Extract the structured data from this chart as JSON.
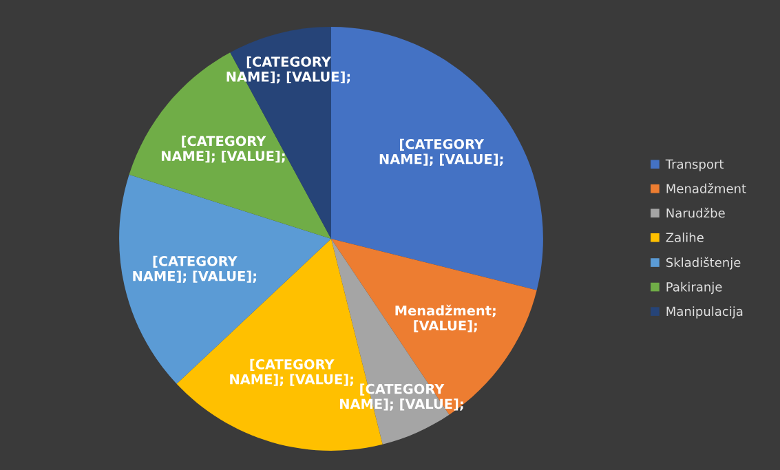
{
  "chart_data": {
    "type": "pie",
    "categories": [
      "Transport",
      "Menadžment",
      "Narudžbe",
      "Zalihe",
      "Skladištenje",
      "Pakiranje",
      "Manipulacija"
    ],
    "values": [
      28.9,
      11.7,
      5.5,
      16.9,
      16.9,
      12.2,
      7.9
    ],
    "colors": [
      "#4472c4",
      "#ed7d31",
      "#a5a5a5",
      "#ffc000",
      "#5b9bd5",
      "#70ad47",
      "#264478"
    ],
    "value_labels": [
      "[CATEGORY\nNAME]; [VALUE];",
      "Menadžment;\n[VALUE];",
      "[CATEGORY\nNAME]; [VALUE];",
      "[CATEGORY\nNAME]; [VALUE];",
      "[CATEGORY\nNAME]; [VALUE];",
      "[CATEGORY\nNAME]; [VALUE];",
      "[CATEGORY\nNAME]; [VALUE];"
    ],
    "legend": "right"
  }
}
